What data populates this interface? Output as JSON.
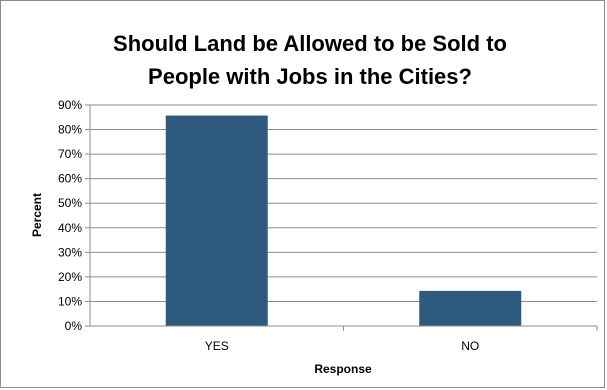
{
  "chart_data": {
    "type": "bar",
    "title_lines": [
      "Should Land be Allowed to be Sold to",
      "People with Jobs in the Cities?"
    ],
    "xlabel": "Response",
    "ylabel": "Percent",
    "categories": [
      "YES",
      "NO"
    ],
    "values": [
      85.7,
      14.3
    ],
    "ylim": [
      0,
      90
    ],
    "yticks": [
      "0%",
      "10%",
      "20%",
      "30%",
      "40%",
      "50%",
      "60%",
      "70%",
      "80%",
      "90%"
    ],
    "grid": true,
    "legend": "none",
    "bar_color": "#2e5a7e",
    "grid_color": "#8c8c8c"
  }
}
